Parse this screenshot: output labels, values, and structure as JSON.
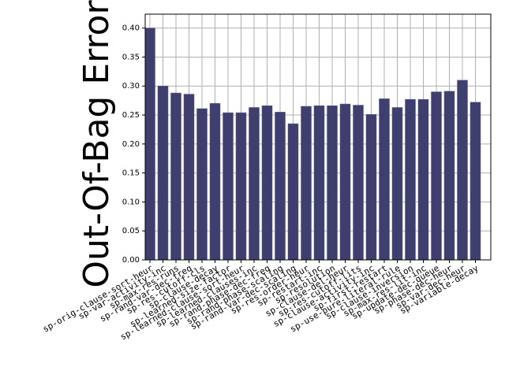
{
  "chart_data": {
    "type": "bar",
    "y_label": "Out-Of-Bag Error",
    "categories": [
      "sp-orig-clause-sort-heur",
      "sp-var-activity-inc",
      "sp-max-res-runs",
      "sp-rand-var-dec-freq",
      "sp-res-cutoff-cls",
      "sp-clause-decay",
      "sp-learned-size-factor",
      "sp-learned-clause-sort-heur",
      "sp-learned-clauses-inc",
      "sp-rand-phase-dec-freq",
      "sp-rand-phase-scaling",
      "sp-rand-var-dec-scaling",
      "sp-res-order-heur",
      "sp-restart-inc",
      "sp-resolution",
      "sp-clause-del-heur",
      "sp-res-cutoff-lits",
      "sp-clause-activity-inc",
      "sp-first-restart",
      "sp-use-pure-literal-rule",
      "sp-clause-inversion",
      "sp-max-res-lit-inc",
      "sp-update-dec-queue",
      "sp-phase-dec-heur",
      "sp-var-dec-heur",
      "sp-variable-decay"
    ],
    "values": [
      0.4,
      0.3,
      0.288,
      0.286,
      0.261,
      0.27,
      0.254,
      0.254,
      0.263,
      0.266,
      0.255,
      0.235,
      0.265,
      0.266,
      0.266,
      0.269,
      0.267,
      0.251,
      0.278,
      0.263,
      0.277,
      0.277,
      0.29,
      0.291,
      0.31,
      0.272
    ],
    "color": "#3f3f6f",
    "ylim": [
      0,
      0.424
    ],
    "yticks": [
      {
        "value": 0,
        "label": "0.00"
      },
      0.05,
      {
        "value": 0.1,
        "label": "0.10"
      },
      0.15,
      {
        "value": 0.2,
        "label": "0.20"
      },
      0.25,
      {
        "value": 0.3,
        "label": "0.30"
      },
      0.35,
      {
        "value": 0.4,
        "label": "0.40"
      }
    ],
    "grid": true
  }
}
